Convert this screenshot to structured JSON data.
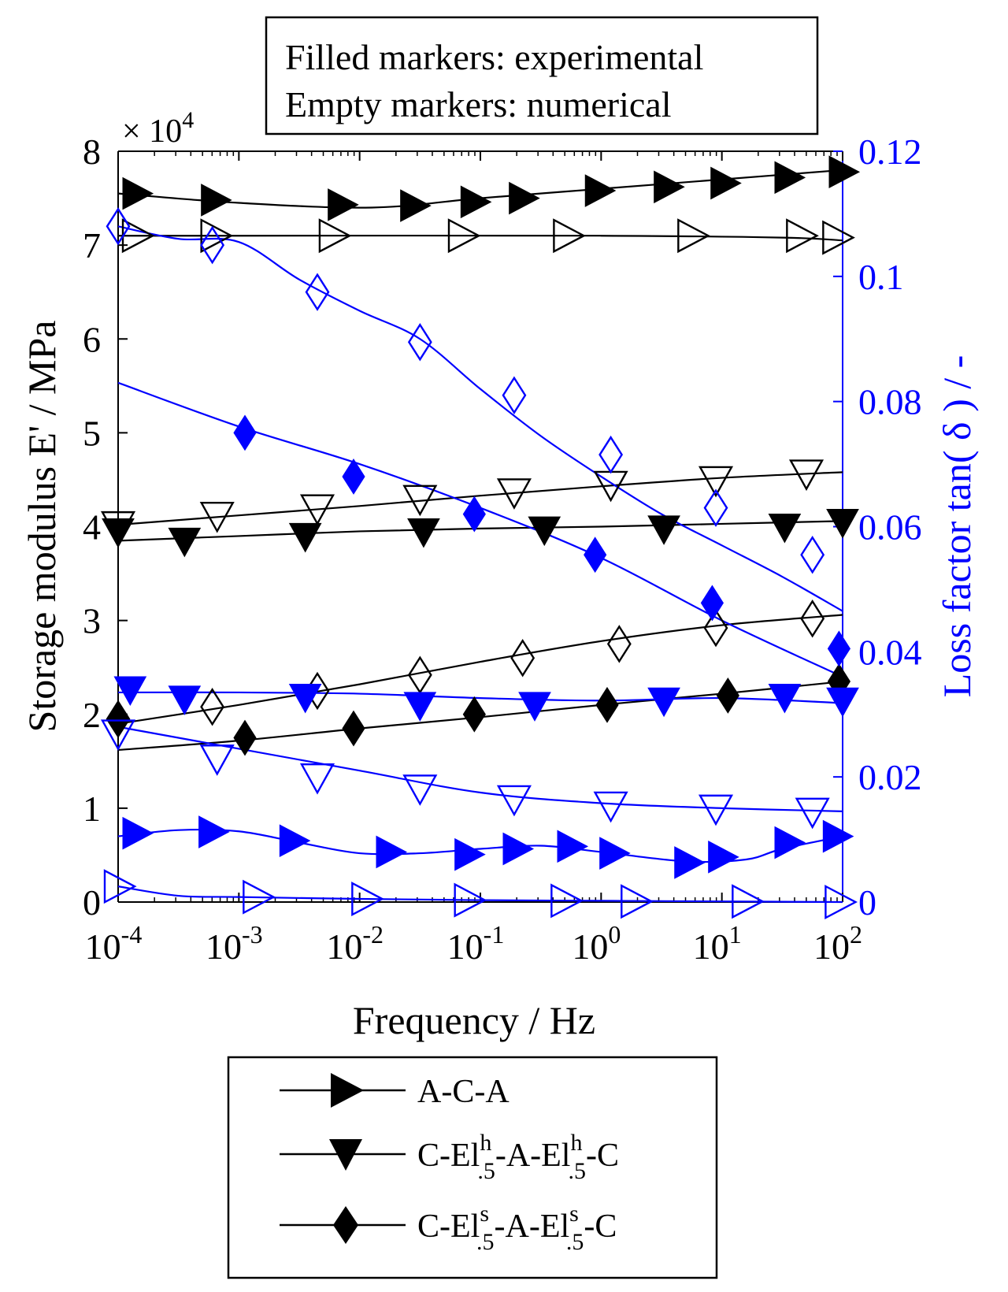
{
  "note_box": {
    "line1": "Filled markers: experimental",
    "line2": "Empty markers: numerical"
  },
  "chart_data": {
    "type": "line",
    "title": "",
    "xlabel": "Frequency / Hz",
    "ylabel_left": "Storage modulus E' / MPa",
    "ylabel_right": "Loss factor tan( δ ) / -",
    "xscale": "log",
    "x_range_exp": [
      -4,
      2
    ],
    "x_ticks": [
      {
        "base": "10",
        "exp": "-4",
        "value_exp": -4
      },
      {
        "base": "10",
        "exp": "-3",
        "value_exp": -3
      },
      {
        "base": "10",
        "exp": "-2",
        "value_exp": -2
      },
      {
        "base": "10",
        "exp": "-1",
        "value_exp": -1
      },
      {
        "base": "10",
        "exp": "0",
        "value_exp": 0
      },
      {
        "base": "10",
        "exp": "1",
        "value_exp": 1
      },
      {
        "base": "10",
        "exp": "2",
        "value_exp": 2
      }
    ],
    "left_axis": {
      "ylim": [
        0,
        8
      ],
      "ticks": [
        "0",
        "1",
        "2",
        "3",
        "4",
        "5",
        "6",
        "7",
        "8"
      ],
      "multiplier_base": "× 10",
      "multiplier_exp": "4",
      "color": "#000000"
    },
    "right_axis": {
      "ylim": [
        0,
        0.12
      ],
      "ticks": [
        "0",
        "0.02",
        "0.04",
        "0.06",
        "0.08",
        "0.1",
        "0.12"
      ],
      "tick_values": [
        0,
        0.02,
        0.04,
        0.06,
        0.08,
        0.1,
        0.12
      ],
      "color": "#0000ff"
    },
    "series": [
      {
        "name": "A-C-A storage exp",
        "axis": "left",
        "color": "#000000",
        "marker": "tri-right",
        "filled": true,
        "curve": [
          [
            -4,
            7.55
          ],
          [
            -3,
            7.45
          ],
          [
            -1.9,
            7.4
          ],
          [
            -1,
            7.5
          ],
          [
            0,
            7.6
          ],
          [
            1,
            7.7
          ],
          [
            2,
            7.8
          ]
        ],
        "points": [
          [
            -3.85,
            7.55
          ],
          [
            -3.2,
            7.48
          ],
          [
            -2.15,
            7.43
          ],
          [
            -1.55,
            7.42
          ],
          [
            -1.05,
            7.46
          ],
          [
            -0.65,
            7.5
          ],
          [
            -0.02,
            7.58
          ],
          [
            0.55,
            7.62
          ],
          [
            1.02,
            7.66
          ],
          [
            1.55,
            7.72
          ],
          [
            2.0,
            7.78
          ]
        ]
      },
      {
        "name": "A-C-A storage num",
        "axis": "left",
        "color": "#000000",
        "marker": "tri-right",
        "filled": false,
        "curve": [
          [
            -4,
            7.1
          ],
          [
            -3,
            7.1
          ],
          [
            0,
            7.1
          ],
          [
            1.5,
            7.08
          ],
          [
            2,
            7.05
          ]
        ],
        "points": [
          [
            -3.85,
            7.1
          ],
          [
            -3.2,
            7.1
          ],
          [
            -2.22,
            7.1
          ],
          [
            -1.15,
            7.1
          ],
          [
            -0.28,
            7.1
          ],
          [
            0.75,
            7.1
          ],
          [
            1.65,
            7.1
          ],
          [
            1.95,
            7.08
          ]
        ]
      },
      {
        "name": "C-El^h-A-El^h-C storage exp",
        "axis": "left",
        "color": "#000000",
        "marker": "tri-down",
        "filled": true,
        "curve": [
          [
            -4,
            3.85
          ],
          [
            -3,
            3.9
          ],
          [
            -2,
            3.95
          ],
          [
            -1,
            3.98
          ],
          [
            0,
            4.0
          ],
          [
            1,
            4.03
          ],
          [
            2,
            4.06
          ]
        ],
        "points": [
          [
            -4.0,
            3.95
          ],
          [
            -3.45,
            3.85
          ],
          [
            -2.45,
            3.9
          ],
          [
            -1.47,
            3.95
          ],
          [
            -0.47,
            3.97
          ],
          [
            0.52,
            3.98
          ],
          [
            1.52,
            4.0
          ],
          [
            2.0,
            4.05
          ]
        ]
      },
      {
        "name": "C-El^h-A-El^h-C storage num",
        "axis": "left",
        "color": "#000000",
        "marker": "tri-down",
        "filled": false,
        "curve": [
          [
            -4,
            4.02
          ],
          [
            -3,
            4.12
          ],
          [
            -2,
            4.22
          ],
          [
            -1,
            4.33
          ],
          [
            0,
            4.43
          ],
          [
            1,
            4.52
          ],
          [
            2,
            4.58
          ]
        ],
        "points": [
          [
            -4.0,
            4.02
          ],
          [
            -3.18,
            4.12
          ],
          [
            -2.35,
            4.2
          ],
          [
            -1.5,
            4.3
          ],
          [
            -0.72,
            4.37
          ],
          [
            0.08,
            4.45
          ],
          [
            0.95,
            4.5
          ],
          [
            1.7,
            4.57
          ]
        ]
      },
      {
        "name": "C-El^s-A-El^s-C storage exp",
        "axis": "left",
        "color": "#000000",
        "marker": "diamond",
        "filled": true,
        "curve": [
          [
            -4,
            1.62
          ],
          [
            -3,
            1.72
          ],
          [
            -2,
            1.85
          ],
          [
            -1,
            1.97
          ],
          [
            0,
            2.1
          ],
          [
            1,
            2.22
          ],
          [
            2,
            2.35
          ]
        ],
        "points": [
          [
            -4.0,
            1.95
          ],
          [
            -2.95,
            1.75
          ],
          [
            -2.05,
            1.85
          ],
          [
            -1.05,
            2.0
          ],
          [
            0.05,
            2.1
          ],
          [
            1.05,
            2.2
          ],
          [
            1.97,
            2.35
          ]
        ]
      },
      {
        "name": "C-El^s-A-El^s-C storage num",
        "axis": "left",
        "color": "#000000",
        "marker": "diamond",
        "filled": false,
        "curve": [
          [
            -4,
            1.9
          ],
          [
            -3,
            2.1
          ],
          [
            -2,
            2.32
          ],
          [
            -1,
            2.56
          ],
          [
            0,
            2.78
          ],
          [
            1,
            2.95
          ],
          [
            2,
            3.06
          ]
        ],
        "points": [
          [
            -4.0,
            1.95
          ],
          [
            -3.22,
            2.08
          ],
          [
            -2.35,
            2.25
          ],
          [
            -1.5,
            2.42
          ],
          [
            -0.65,
            2.6
          ],
          [
            0.15,
            2.75
          ],
          [
            0.95,
            2.92
          ],
          [
            1.75,
            3.02
          ]
        ]
      },
      {
        "name": "A-C-A loss exp",
        "axis": "right",
        "color": "#0000ff",
        "marker": "tri-right",
        "filled": true,
        "curve": [
          [
            -4,
            0.0105
          ],
          [
            -3.5,
            0.0115
          ],
          [
            -3,
            0.0113
          ],
          [
            -2.5,
            0.0095
          ],
          [
            -2,
            0.0078
          ],
          [
            -1.5,
            0.0078
          ],
          [
            -1,
            0.0085
          ],
          [
            -0.5,
            0.009
          ],
          [
            0,
            0.008
          ],
          [
            0.7,
            0.0065
          ],
          [
            1.2,
            0.0068
          ],
          [
            1.5,
            0.0085
          ],
          [
            2,
            0.0105
          ]
        ],
        "points": [
          [
            -3.85,
            0.011
          ],
          [
            -3.22,
            0.0112
          ],
          [
            -2.55,
            0.0098
          ],
          [
            -1.75,
            0.008
          ],
          [
            -1.1,
            0.0076
          ],
          [
            -0.7,
            0.0085
          ],
          [
            -0.25,
            0.0089
          ],
          [
            0.1,
            0.0078
          ],
          [
            0.72,
            0.0063
          ],
          [
            1.0,
            0.0072
          ],
          [
            1.55,
            0.0095
          ],
          [
            1.95,
            0.0105
          ]
        ]
      },
      {
        "name": "A-C-A loss num",
        "axis": "right",
        "color": "#0000ff",
        "marker": "tri-right",
        "filled": false,
        "curve": [
          [
            -4,
            0.0025
          ],
          [
            -3.5,
            0.001
          ],
          [
            -3,
            0.0008
          ],
          [
            -2,
            0.0005
          ],
          [
            -1,
            0.0003
          ],
          [
            0,
            0.0002
          ],
          [
            1,
            0.0001
          ],
          [
            2,
            0.0
          ]
        ],
        "points": [
          [
            -4.0,
            0.0025
          ],
          [
            -2.85,
            0.0008
          ],
          [
            -1.95,
            0.0005
          ],
          [
            -1.1,
            0.0003
          ],
          [
            -0.3,
            0.0002
          ],
          [
            0.28,
            0.0001
          ],
          [
            1.2,
            0.0001
          ],
          [
            1.97,
            0.0
          ]
        ]
      },
      {
        "name": "C-El^h-A-El^h-C loss exp",
        "axis": "right",
        "color": "#0000ff",
        "marker": "tri-down",
        "filled": true,
        "curve": [
          [
            -4,
            0.0335
          ],
          [
            -3,
            0.0335
          ],
          [
            -2,
            0.0333
          ],
          [
            -1,
            0.0326
          ],
          [
            0,
            0.0322
          ],
          [
            1,
            0.0326
          ],
          [
            2,
            0.0318
          ]
        ],
        "points": [
          [
            -3.9,
            0.034
          ],
          [
            -3.45,
            0.0325
          ],
          [
            -2.45,
            0.0328
          ],
          [
            -1.5,
            0.0315
          ],
          [
            -0.55,
            0.0315
          ],
          [
            0.52,
            0.0322
          ],
          [
            1.52,
            0.0328
          ],
          [
            2.0,
            0.0322
          ]
        ]
      },
      {
        "name": "C-El^h-A-El^h-C loss num",
        "axis": "right",
        "color": "#0000ff",
        "marker": "tri-down",
        "filled": false,
        "curve": [
          [
            -4,
            0.028
          ],
          [
            -3,
            0.0245
          ],
          [
            -2,
            0.021
          ],
          [
            -1,
            0.0175
          ],
          [
            0,
            0.0158
          ],
          [
            1,
            0.015
          ],
          [
            2,
            0.0145
          ]
        ],
        "points": [
          [
            -4.0,
            0.027
          ],
          [
            -3.18,
            0.023
          ],
          [
            -2.35,
            0.02
          ],
          [
            -1.5,
            0.0182
          ],
          [
            -0.72,
            0.0165
          ],
          [
            0.08,
            0.0155
          ],
          [
            0.95,
            0.015
          ],
          [
            1.75,
            0.0145
          ]
        ]
      },
      {
        "name": "C-El^s-A-El^s-C loss exp",
        "axis": "right",
        "color": "#0000ff",
        "marker": "diamond",
        "filled": true,
        "curve": [
          [
            -4,
            0.083
          ],
          [
            -3,
            0.076
          ],
          [
            -2,
            0.07
          ],
          [
            -1,
            0.063
          ],
          [
            0,
            0.055
          ],
          [
            1,
            0.045
          ],
          [
            2,
            0.036
          ]
        ],
        "points": [
          [
            -2.95,
            0.075
          ],
          [
            -2.05,
            0.068
          ],
          [
            -1.05,
            0.062
          ],
          [
            -0.05,
            0.0555
          ],
          [
            0.92,
            0.0478
          ],
          [
            1.97,
            0.0405
          ]
        ]
      },
      {
        "name": "C-El^s-A-El^s-C loss num",
        "axis": "right",
        "color": "#0000ff",
        "marker": "diamond",
        "filled": false,
        "curve": [
          [
            -4,
            0.108
          ],
          [
            -3.5,
            0.106
          ],
          [
            -3,
            0.1055
          ],
          [
            -2.5,
            0.0995
          ],
          [
            -2,
            0.0945
          ],
          [
            -1.5,
            0.09
          ],
          [
            -1,
            0.082
          ],
          [
            -0.5,
            0.0745
          ],
          [
            0,
            0.068
          ],
          [
            0.5,
            0.062
          ],
          [
            1,
            0.057
          ],
          [
            1.5,
            0.052
          ],
          [
            2,
            0.0465
          ]
        ],
        "points": [
          [
            -4.0,
            0.108
          ],
          [
            -3.22,
            0.105
          ],
          [
            -2.35,
            0.0975
          ],
          [
            -1.5,
            0.0895
          ],
          [
            -0.72,
            0.081
          ],
          [
            0.08,
            0.0715
          ],
          [
            0.95,
            0.063
          ],
          [
            1.75,
            0.0555
          ]
        ]
      }
    ]
  },
  "legend": {
    "items": [
      {
        "marker": "tri-right",
        "label": "A-C-A"
      },
      {
        "marker": "tri-down",
        "prefix": "C-El",
        "sup": "h",
        "sub": ".5",
        "mid": "-A-El",
        "sup2": "h",
        "sub2": ".5",
        "suffix": "-C"
      },
      {
        "marker": "diamond",
        "prefix": "C-El",
        "sup": "s",
        "sub": ".5",
        "mid": "-A-El",
        "sup2": "s",
        "sub2": ".5",
        "suffix": "-C"
      }
    ]
  }
}
